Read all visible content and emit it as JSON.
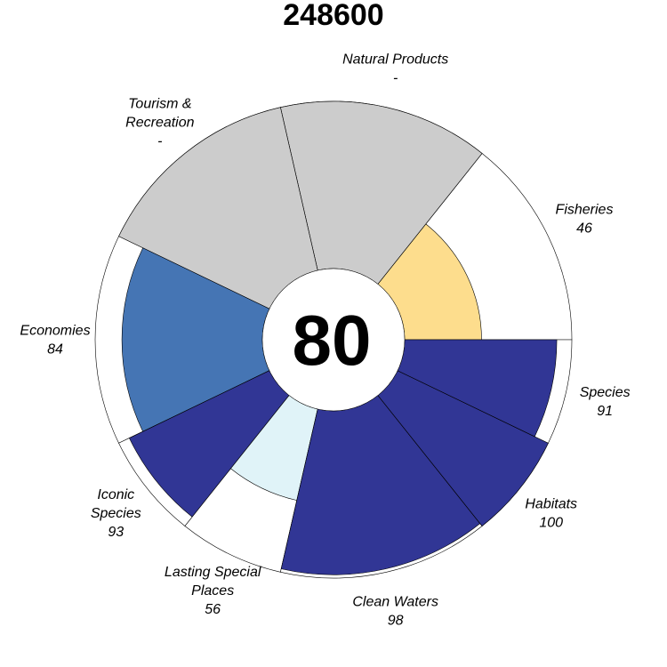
{
  "chart_data": {
    "type": "flower",
    "title": "248600",
    "center_score": "80",
    "petals": [
      {
        "label_lines": [
          "Fisheries"
        ],
        "value_text": "46",
        "score": 46,
        "weight": 1,
        "color": "#FDDD8D"
      },
      {
        "label_lines": [
          "Natural Products"
        ],
        "value_text": "-",
        "score": null,
        "weight": 1,
        "color": "#CCCCCC"
      },
      {
        "label_lines": [
          "Tourism &",
          "Recreation"
        ],
        "value_text": "-",
        "score": null,
        "weight": 1,
        "color": "#CCCCCC"
      },
      {
        "label_lines": [
          "Economies"
        ],
        "value_text": "84",
        "score": 84,
        "weight": 1,
        "color": "#4575B4"
      },
      {
        "label_lines": [
          "Iconic",
          "Species"
        ],
        "value_text": "93",
        "score": 93,
        "weight": 0.5,
        "color": "#313695"
      },
      {
        "label_lines": [
          "Lasting Special",
          "Places"
        ],
        "value_text": "56",
        "score": 56,
        "weight": 0.5,
        "color": "#E0F3F8"
      },
      {
        "label_lines": [
          "Clean Waters"
        ],
        "value_text": "98",
        "score": 98,
        "weight": 1,
        "color": "#313695"
      },
      {
        "label_lines": [
          "Habitats"
        ],
        "value_text": "100",
        "score": 100,
        "weight": 0.5,
        "color": "#313695"
      },
      {
        "label_lines": [
          "Species"
        ],
        "value_text": "91",
        "score": 91,
        "weight": 0.5,
        "color": "#313695"
      }
    ],
    "ylim": [
      0,
      100
    ],
    "missing_color": "#CCCCCC"
  }
}
